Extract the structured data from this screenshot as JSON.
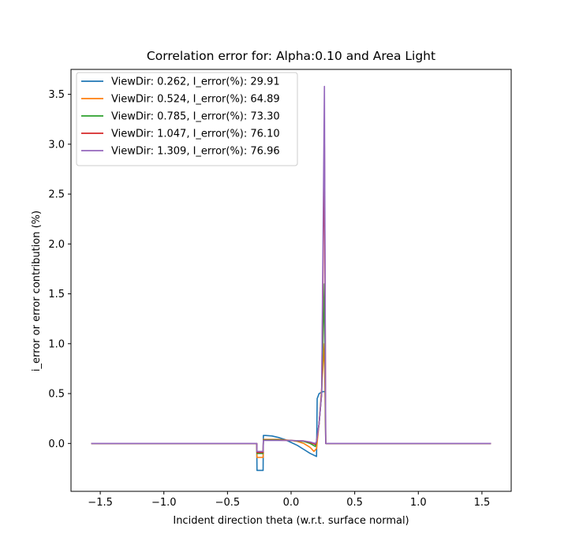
{
  "chart_data": {
    "type": "line",
    "title": "Correlation error for: Alpha:0.10 and Area Light",
    "xlabel": "Incident direction theta (w.r.t. surface normal)",
    "ylabel": "i_error or error contribution (%)",
    "xlim": [
      -1.73,
      1.73
    ],
    "ylim": [
      -0.48,
      3.75
    ],
    "xticks": [
      -1.5,
      -1.0,
      -0.5,
      0.0,
      0.5,
      1.0,
      1.5
    ],
    "xtick_labels": [
      "−1.5",
      "−1.0",
      "−0.5",
      "0.0",
      "0.5",
      "1.0",
      "1.5"
    ],
    "yticks": [
      0.0,
      0.5,
      1.0,
      1.5,
      2.0,
      2.5,
      3.0,
      3.5
    ],
    "ytick_labels": [
      "0.0",
      "0.5",
      "1.0",
      "1.5",
      "2.0",
      "2.5",
      "3.0",
      "3.5"
    ],
    "grid": false,
    "legend_position": "upper-left",
    "series": [
      {
        "name": "ViewDir: 0.262, I_error(%): 29.91",
        "color": "#1f77b4",
        "x": [
          -1.5708,
          -0.27,
          -0.268,
          -0.22,
          -0.218,
          -0.2,
          -0.15,
          -0.1,
          -0.05,
          0.0,
          0.05,
          0.1,
          0.15,
          0.2,
          0.205,
          0.22,
          0.25,
          0.26,
          0.268,
          0.272,
          1.5708
        ],
        "y": [
          0.0,
          0.0,
          -0.27,
          -0.27,
          0.08,
          0.08,
          0.075,
          0.06,
          0.04,
          0.01,
          -0.02,
          -0.06,
          -0.1,
          -0.13,
          0.45,
          0.5,
          0.52,
          0.52,
          0.52,
          0.0,
          0.0
        ]
      },
      {
        "name": "ViewDir: 0.524, I_error(%): 64.89",
        "color": "#ff7f0e",
        "x": [
          -1.5708,
          -0.27,
          -0.268,
          -0.22,
          -0.218,
          -0.15,
          -0.1,
          -0.05,
          0.0,
          0.05,
          0.1,
          0.15,
          0.18,
          0.2,
          0.22,
          0.24,
          0.262,
          0.272,
          1.5708
        ],
        "y": [
          0.0,
          0.0,
          -0.14,
          -0.14,
          0.04,
          0.04,
          0.04,
          0.035,
          0.03,
          0.02,
          0.0,
          -0.04,
          -0.08,
          -0.05,
          0.2,
          0.55,
          1.0,
          0.0,
          0.0
        ]
      },
      {
        "name": "ViewDir: 0.785, I_error(%): 73.30",
        "color": "#2ca02c",
        "x": [
          -1.5708,
          -0.27,
          -0.268,
          -0.22,
          -0.218,
          -0.1,
          0.0,
          0.1,
          0.15,
          0.19,
          0.2,
          0.22,
          0.24,
          0.262,
          0.272,
          1.5708
        ],
        "y": [
          0.0,
          0.0,
          -0.1,
          -0.1,
          0.035,
          0.035,
          0.03,
          0.02,
          0.0,
          -0.03,
          0.02,
          0.2,
          0.5,
          1.6,
          0.0,
          0.0
        ]
      },
      {
        "name": "ViewDir: 1.047, I_error(%): 76.10",
        "color": "#d62728",
        "x": [
          -1.5708,
          -0.27,
          -0.268,
          -0.22,
          -0.218,
          -0.1,
          0.0,
          0.1,
          0.15,
          0.19,
          0.2,
          0.22,
          0.24,
          0.262,
          0.272,
          1.5708
        ],
        "y": [
          0.0,
          0.0,
          -0.09,
          -0.09,
          0.032,
          0.032,
          0.03,
          0.025,
          0.01,
          -0.01,
          0.02,
          0.2,
          0.5,
          3.0,
          0.0,
          0.0
        ]
      },
      {
        "name": "ViewDir: 1.309, I_error(%): 76.96",
        "color": "#9467bd",
        "x": [
          -1.5708,
          -0.27,
          -0.268,
          -0.22,
          -0.218,
          -0.1,
          0.0,
          0.1,
          0.15,
          0.19,
          0.2,
          0.22,
          0.24,
          0.262,
          0.272,
          1.5708
        ],
        "y": [
          0.0,
          0.0,
          -0.08,
          -0.08,
          0.03,
          0.03,
          0.03,
          0.025,
          0.015,
          0.0,
          0.02,
          0.2,
          0.5,
          3.58,
          0.0,
          0.0
        ]
      }
    ]
  }
}
